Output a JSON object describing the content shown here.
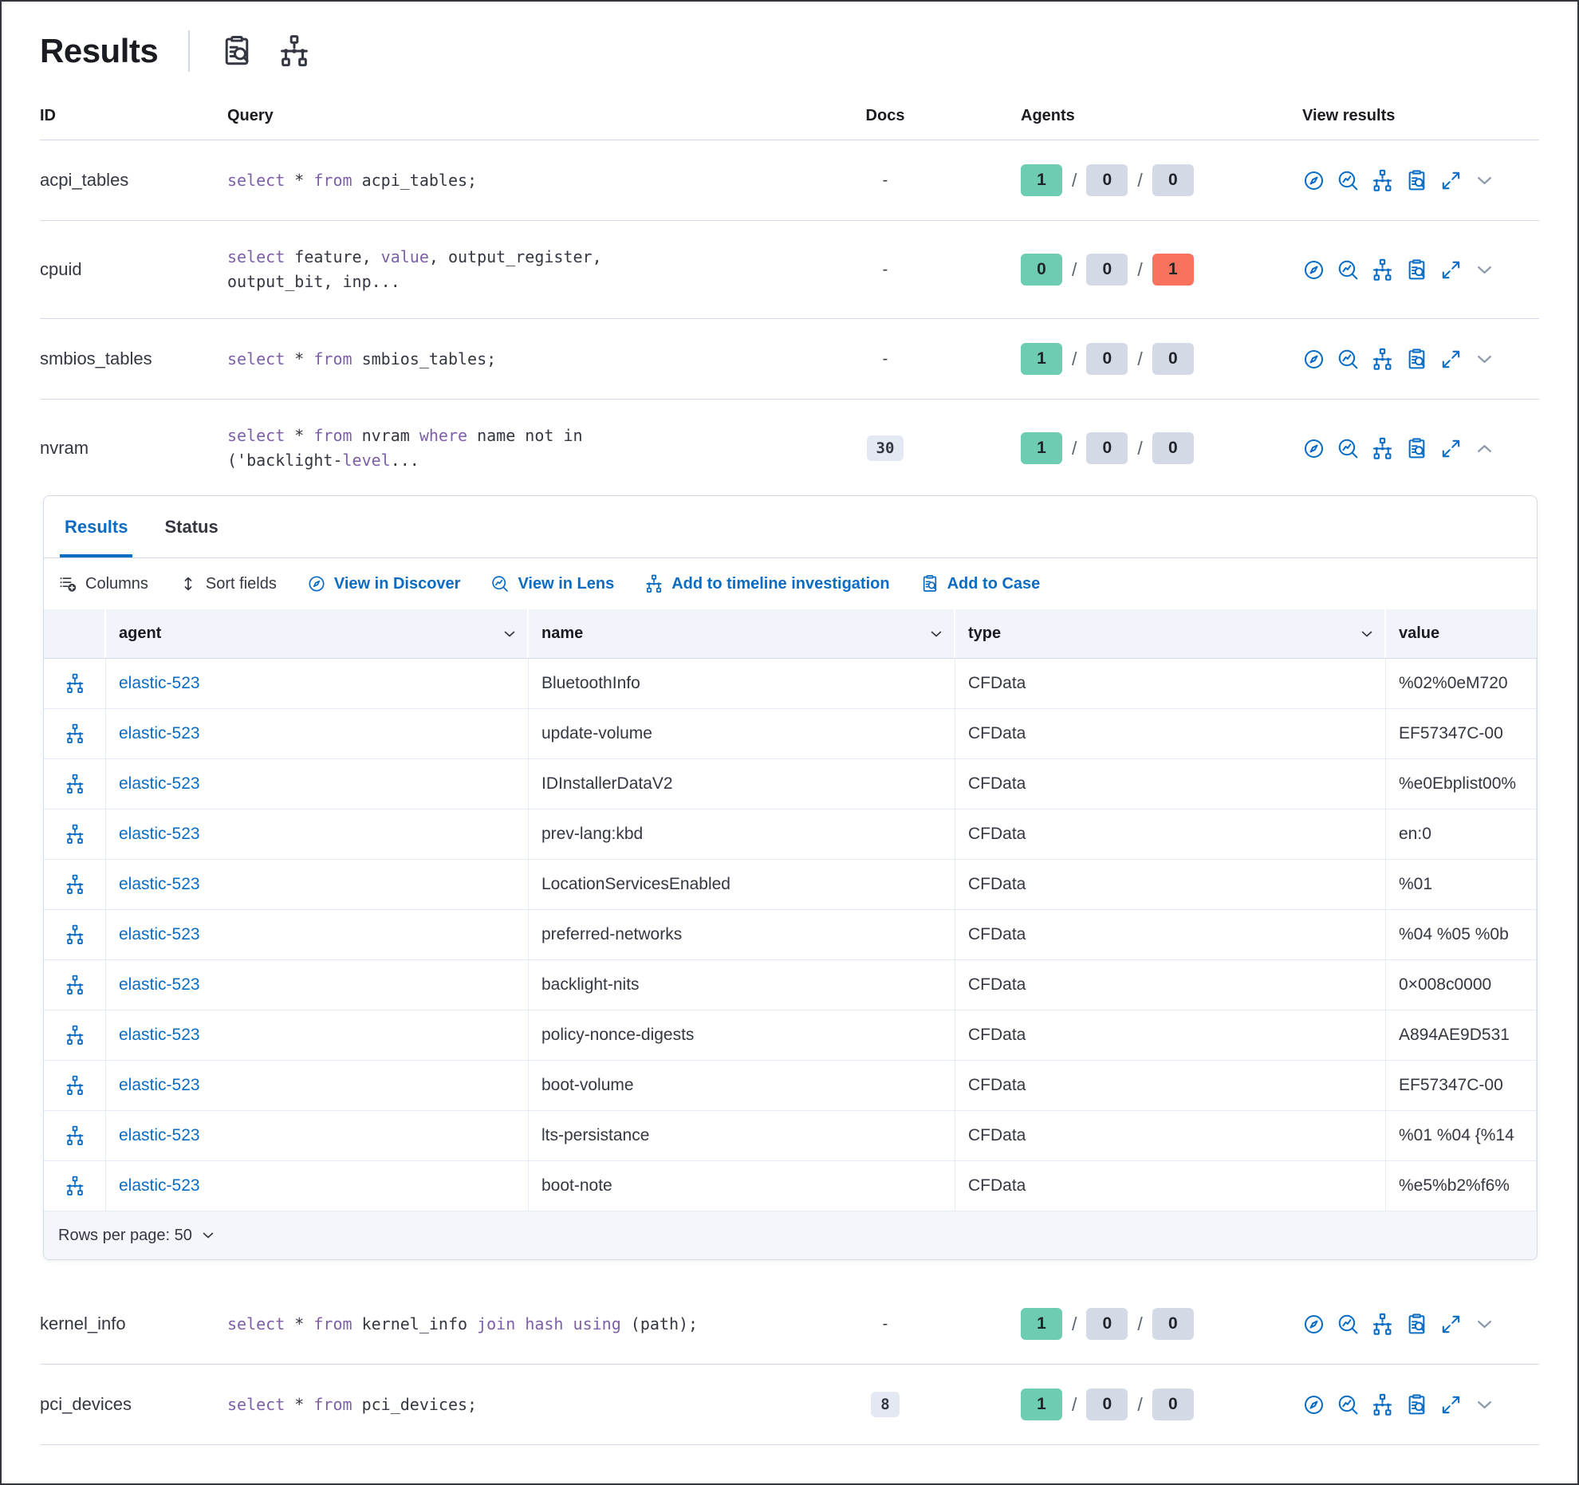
{
  "header": {
    "title": "Results",
    "icons": [
      "inspect-icon",
      "topology-icon"
    ]
  },
  "table_headers": {
    "id": "ID",
    "query": "Query",
    "docs": "Docs",
    "agents": "Agents",
    "view_results": "View results"
  },
  "view_actions": [
    "view-in-discover",
    "view-in-lens",
    "add-to-timeline",
    "add-to-case",
    "expand"
  ],
  "queries_top": [
    {
      "id": "acpi_tables",
      "docs": {
        "text": "-",
        "badge": false
      },
      "expanded": false,
      "badges": [
        {
          "v": "1",
          "c": "green"
        },
        {
          "v": "0",
          "c": "gray"
        },
        {
          "v": "0",
          "c": "gray"
        }
      ],
      "lines": [
        [
          {
            "t": "select",
            "k": true
          },
          {
            "t": " * ",
            "k": false
          },
          {
            "t": "from",
            "k": true
          },
          {
            "t": " acpi_tables;",
            "k": false
          }
        ]
      ]
    },
    {
      "id": "cpuid",
      "docs": {
        "text": "-",
        "badge": false
      },
      "expanded": false,
      "badges": [
        {
          "v": "0",
          "c": "green"
        },
        {
          "v": "0",
          "c": "gray"
        },
        {
          "v": "1",
          "c": "red"
        }
      ],
      "lines": [
        [
          {
            "t": "select",
            "k": true
          },
          {
            "t": " feature, ",
            "k": false
          },
          {
            "t": "value",
            "k": true
          },
          {
            "t": ", output_register,",
            "k": false
          }
        ],
        [
          {
            "t": "output_bit, inp...",
            "k": false
          }
        ]
      ]
    },
    {
      "id": "smbios_tables",
      "docs": {
        "text": "-",
        "badge": false
      },
      "expanded": false,
      "badges": [
        {
          "v": "1",
          "c": "green"
        },
        {
          "v": "0",
          "c": "gray"
        },
        {
          "v": "0",
          "c": "gray"
        }
      ],
      "lines": [
        [
          {
            "t": "select",
            "k": true
          },
          {
            "t": " * ",
            "k": false
          },
          {
            "t": "from",
            "k": true
          },
          {
            "t": " smbios_tables;",
            "k": false
          }
        ]
      ]
    },
    {
      "id": "nvram",
      "docs": {
        "text": "30",
        "badge": true
      },
      "expanded": true,
      "badges": [
        {
          "v": "1",
          "c": "green"
        },
        {
          "v": "0",
          "c": "gray"
        },
        {
          "v": "0",
          "c": "gray"
        }
      ],
      "lines": [
        [
          {
            "t": "select",
            "k": true
          },
          {
            "t": " * ",
            "k": false
          },
          {
            "t": "from",
            "k": true
          },
          {
            "t": " nvram ",
            "k": false
          },
          {
            "t": "where",
            "k": true
          },
          {
            "t": " name not in",
            "k": false
          }
        ],
        [
          {
            "t": "('backlight-",
            "k": false
          },
          {
            "t": "level",
            "k": true
          },
          {
            "t": "...",
            "k": false
          }
        ]
      ]
    }
  ],
  "queries_bottom": [
    {
      "id": "kernel_info",
      "docs": {
        "text": "-",
        "badge": false
      },
      "expanded": false,
      "badges": [
        {
          "v": "1",
          "c": "green"
        },
        {
          "v": "0",
          "c": "gray"
        },
        {
          "v": "0",
          "c": "gray"
        }
      ],
      "lines": [
        [
          {
            "t": "select",
            "k": true
          },
          {
            "t": " * ",
            "k": false
          },
          {
            "t": "from",
            "k": true
          },
          {
            "t": " kernel_info ",
            "k": false
          },
          {
            "t": "join",
            "k": true
          },
          {
            "t": " ",
            "k": false
          },
          {
            "t": "hash",
            "k": true
          },
          {
            "t": " ",
            "k": false
          },
          {
            "t": "using",
            "k": true
          },
          {
            "t": " (path);",
            "k": false
          }
        ]
      ]
    },
    {
      "id": "pci_devices",
      "docs": {
        "text": "8",
        "badge": true
      },
      "expanded": false,
      "badges": [
        {
          "v": "1",
          "c": "green"
        },
        {
          "v": "0",
          "c": "gray"
        },
        {
          "v": "0",
          "c": "gray"
        }
      ],
      "lines": [
        [
          {
            "t": "select",
            "k": true
          },
          {
            "t": " * ",
            "k": false
          },
          {
            "t": "from",
            "k": true
          },
          {
            "t": " pci_devices;",
            "k": false
          }
        ]
      ]
    }
  ],
  "panel": {
    "tabs": [
      {
        "label": "Results",
        "active": true
      },
      {
        "label": "Status",
        "active": false
      }
    ],
    "toolbar": [
      {
        "label": "Columns",
        "icon": "columns-icon"
      },
      {
        "label": "Sort fields",
        "icon": "sort-fields-icon"
      },
      {
        "label": "View in Discover",
        "icon": "compass-icon"
      },
      {
        "label": "View in Lens",
        "icon": "lens-icon"
      },
      {
        "label": "Add to timeline investigation",
        "icon": "topology-icon"
      },
      {
        "label": "Add to Case",
        "icon": "inspect-icon"
      }
    ],
    "table": {
      "columns": [
        {
          "label": "agent"
        },
        {
          "label": "name"
        },
        {
          "label": "type"
        },
        {
          "label": "value"
        }
      ],
      "rows": [
        {
          "agent": "elastic-523",
          "name": "BluetoothInfo",
          "type": "CFData",
          "value": "%02%0eM720"
        },
        {
          "agent": "elastic-523",
          "name": "update-volume",
          "type": "CFData",
          "value": "EF57347C-00"
        },
        {
          "agent": "elastic-523",
          "name": "IDInstallerDataV2",
          "type": "CFData",
          "value": "%e0Ebplist00%"
        },
        {
          "agent": "elastic-523",
          "name": "prev-lang:kbd",
          "type": "CFData",
          "value": "en:0"
        },
        {
          "agent": "elastic-523",
          "name": "LocationServicesEnabled",
          "type": "CFData",
          "value": "%01"
        },
        {
          "agent": "elastic-523",
          "name": "preferred-networks",
          "type": "CFData",
          "value": "%04 %05 %0b"
        },
        {
          "agent": "elastic-523",
          "name": "backlight-nits",
          "type": "CFData",
          "value": "0×008c0000"
        },
        {
          "agent": "elastic-523",
          "name": "policy-nonce-digests",
          "type": "CFData",
          "value": "A894AE9D531"
        },
        {
          "agent": "elastic-523",
          "name": "boot-volume",
          "type": "CFData",
          "value": "EF57347C-00"
        },
        {
          "agent": "elastic-523",
          "name": "lts-persistance",
          "type": "CFData",
          "value": "%01 %04 {%14"
        },
        {
          "agent": "elastic-523",
          "name": "boot-note",
          "type": "CFData",
          "value": "%e5%b2%f6%"
        }
      ]
    },
    "footer": {
      "rows_per_page": "Rows per page: 50"
    }
  },
  "colors": {
    "accent_blue": "#0b6cc4",
    "keyword_purple": "#7d5fa8",
    "badge_green": "#6dccb1",
    "badge_gray": "#d3dae6",
    "badge_red": "#f9725e"
  }
}
